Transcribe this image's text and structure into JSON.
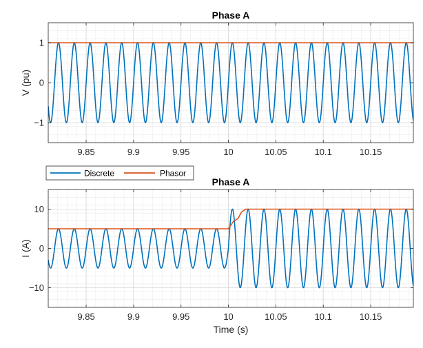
{
  "chart_data": [
    {
      "type": "line",
      "title": "Phase A",
      "xlabel": "",
      "ylabel": "V (pu)",
      "xlim": [
        9.81,
        10.195
      ],
      "ylim": [
        -1.5,
        1.5
      ],
      "xticks": [
        9.85,
        9.9,
        9.95,
        10,
        10.05,
        10.1,
        10.15
      ],
      "xtick_labels": [
        "9.85",
        "9.9",
        "9.95",
        "10",
        "10.05",
        "10.1",
        "10.15"
      ],
      "yticks": [
        -1,
        0,
        1
      ],
      "ytick_labels": [
        "−1",
        "0",
        "1"
      ],
      "grid": true,
      "minor_grid": true,
      "series": [
        {
          "name": "Discrete",
          "kind": "sinusoid",
          "frequency_hz": 60,
          "phase_deg": 0,
          "segments": [
            {
              "from": 9.81,
              "amplitude": 1
            }
          ]
        },
        {
          "name": "Phasor",
          "kind": "magnitude",
          "points": [
            [
              9.81,
              1
            ],
            [
              10.195,
              1
            ]
          ]
        }
      ]
    },
    {
      "type": "line",
      "title": "Phase A",
      "xlabel": "Time (s)",
      "ylabel": "I (A)",
      "xlim": [
        9.81,
        10.195
      ],
      "ylim": [
        -15,
        15
      ],
      "xticks": [
        9.85,
        9.9,
        9.95,
        10,
        10.05,
        10.1,
        10.15
      ],
      "xtick_labels": [
        "9.85",
        "9.9",
        "9.95",
        "10",
        "10.05",
        "10.1",
        "10.15"
      ],
      "yticks": [
        -10,
        0,
        10
      ],
      "ytick_labels": [
        "−10",
        "0",
        "10"
      ],
      "grid": true,
      "minor_grid": true,
      "legend": {
        "entries": [
          "Discrete",
          "Phasor"
        ],
        "placement": "top-left, above plot"
      },
      "series": [
        {
          "name": "Discrete",
          "kind": "sinusoid",
          "frequency_hz": 60,
          "phase_deg": 0,
          "segments": [
            {
              "from": 9.81,
              "amplitude": 5
            },
            {
              "from": 10.0,
              "amplitude": 10
            }
          ]
        },
        {
          "name": "Phasor",
          "kind": "magnitude",
          "points": [
            [
              9.81,
              5
            ],
            [
              10.0,
              5
            ],
            [
              10.005,
              6.8
            ],
            [
              10.01,
              7.6
            ],
            [
              10.014,
              9.3
            ],
            [
              10.018,
              10
            ],
            [
              10.195,
              10
            ]
          ]
        }
      ]
    }
  ],
  "colors": {
    "discrete": "#0072BD",
    "phasor": "#D95319",
    "grid": "#e3e3e3",
    "axis": "#262626"
  }
}
